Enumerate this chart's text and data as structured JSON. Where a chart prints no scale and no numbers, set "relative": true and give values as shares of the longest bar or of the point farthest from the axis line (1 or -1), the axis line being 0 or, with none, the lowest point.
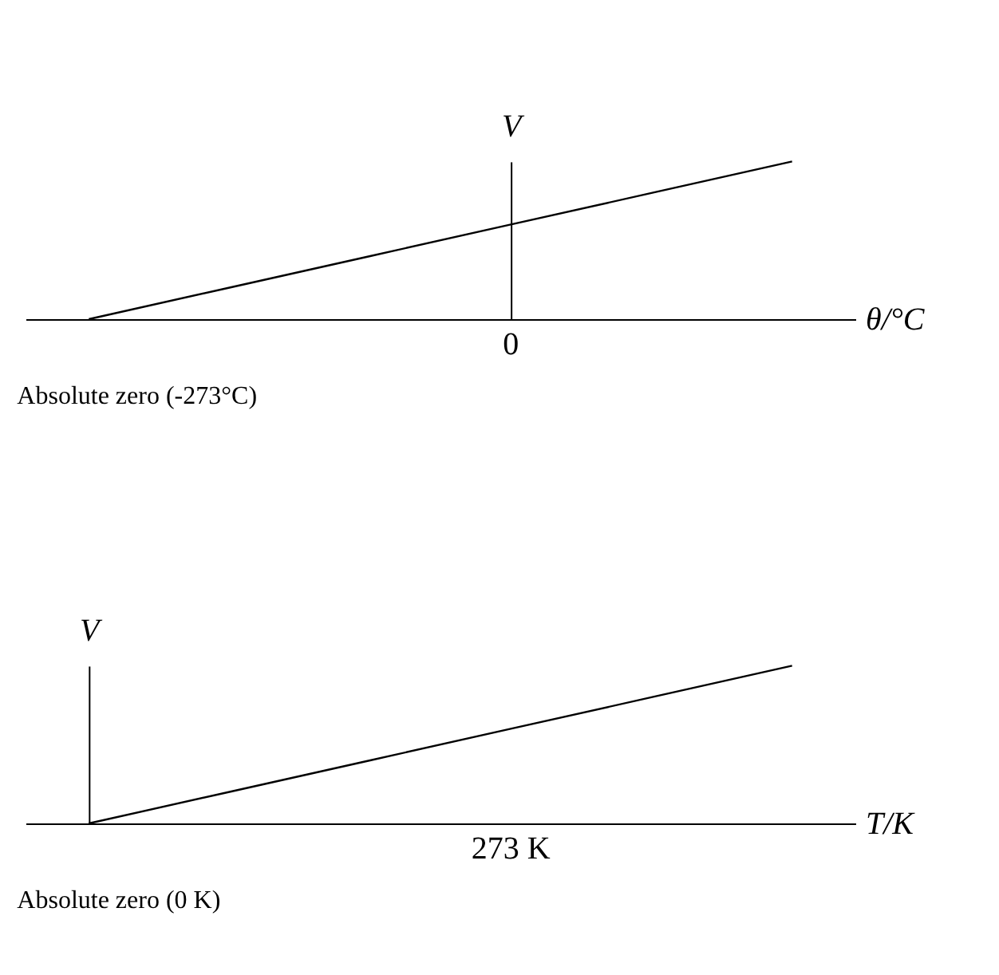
{
  "chart_data": [
    {
      "type": "line",
      "relative": true,
      "xlabel": "θ/°C",
      "ylabel": "V",
      "grid": false,
      "categories": [
        null,
        null,
        null,
        null,
        null,
        null
      ],
      "series": [
        {
          "color": "#000000",
          "values": [
            0,
            0.2,
            0.4,
            0.6,
            0.8,
            1
          ]
        }
      ],
      "annotations": [
        "0",
        "Absolute zero (-273°C)"
      ]
    },
    {
      "type": "line",
      "relative": true,
      "xlabel": "T/K",
      "ylabel": "V",
      "grid": false,
      "categories": [
        null,
        null,
        null,
        null,
        null,
        null
      ],
      "series": [
        {
          "color": "#000000",
          "values": [
            0,
            0.2,
            0.4,
            0.6,
            0.8,
            1
          ]
        }
      ],
      "annotations": [
        "273 K",
        "Absolute zero (0 K)"
      ]
    }
  ]
}
